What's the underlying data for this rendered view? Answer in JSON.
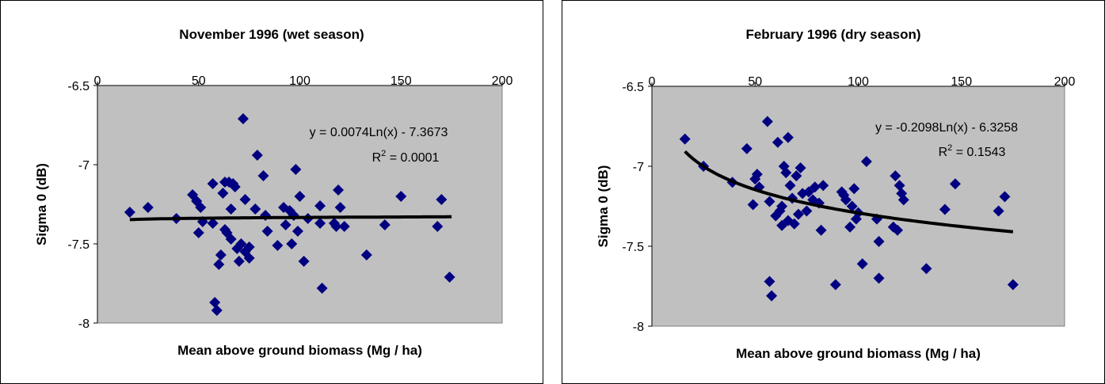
{
  "chart_data": [
    {
      "type": "scatter",
      "title": "November 1996 (wet season)",
      "xlabel": "Mean above ground biomass (Mg / ha)",
      "ylabel": "Sigma 0 (dB)",
      "xlim": [
        0,
        200
      ],
      "ylim": [
        -8,
        -6.5
      ],
      "xticks": [
        "0",
        "50",
        "100",
        "150",
        "200"
      ],
      "yticks": [
        "-6.5",
        "-7",
        "-7.5",
        "-8"
      ],
      "x_axis_position": "top",
      "grid": false,
      "plot_background": "#c0c0c0",
      "marker_color": "#000080",
      "trendline": {
        "type": "logarithmic",
        "a": 0.0074,
        "b": -7.3673,
        "x_range": [
          16,
          175
        ],
        "color": "#000000"
      },
      "equation_text": "y = 0.0074Ln(x) - 7.3673",
      "r2_prefix": "R",
      "r2_sup": "2",
      "r2_suffix": " = 0.0001",
      "series": [
        {
          "x": [
            16,
            25,
            39,
            47,
            49,
            50,
            51,
            52,
            57,
            57,
            58,
            59,
            60,
            61,
            62,
            63,
            63,
            64,
            65,
            66,
            66,
            67,
            68,
            69,
            70,
            71,
            72,
            73,
            73,
            75,
            75,
            78,
            79,
            82,
            83,
            84,
            89,
            92,
            93,
            95,
            96,
            97,
            98,
            99,
            100,
            102,
            104,
            110,
            110,
            111,
            117,
            118,
            119,
            120,
            122,
            133,
            142,
            150,
            168,
            170,
            174
          ],
          "y": [
            -7.3,
            -7.27,
            -7.34,
            -7.19,
            -7.23,
            -7.43,
            -7.27,
            -7.36,
            -7.12,
            -7.37,
            -7.87,
            -7.92,
            -7.63,
            -7.57,
            -7.18,
            -7.11,
            -7.41,
            -7.43,
            -7.11,
            -7.28,
            -7.47,
            -7.12,
            -7.14,
            -7.53,
            -7.61,
            -7.5,
            -6.71,
            -7.22,
            -7.55,
            -7.52,
            -7.59,
            -7.28,
            -6.94,
            -7.07,
            -7.32,
            -7.42,
            -7.51,
            -7.27,
            -7.38,
            -7.29,
            -7.5,
            -7.32,
            -7.03,
            -7.42,
            -7.2,
            -7.61,
            -7.34,
            -7.26,
            -7.37,
            -7.78,
            -7.37,
            -7.39,
            -7.16,
            -7.27,
            -7.39,
            -7.57,
            -7.38,
            -7.2,
            -7.39,
            -7.22,
            -7.71
          ]
        }
      ]
    },
    {
      "type": "scatter",
      "title": "February 1996 (dry season)",
      "xlabel": "Mean above ground biomass (Mg / ha)",
      "ylabel": "Sigma 0 (dB)",
      "xlim": [
        0,
        200
      ],
      "ylim": [
        -8,
        -6.5
      ],
      "xticks": [
        "0",
        "50",
        "100",
        "150",
        "200"
      ],
      "yticks": [
        "-6.5",
        "-7",
        "-7.5",
        "-8"
      ],
      "x_axis_position": "top",
      "grid": false,
      "plot_background": "#c0c0c0",
      "marker_color": "#000080",
      "trendline": {
        "type": "logarithmic",
        "a": -0.2098,
        "b": -6.3258,
        "x_range": [
          16,
          175
        ],
        "color": "#000000"
      },
      "equation_text": "y = -0.2098Ln(x) - 6.3258",
      "r2_prefix": "R",
      "r2_sup": "2",
      "r2_suffix": " = 0.1543",
      "series": [
        {
          "x": [
            16,
            25,
            39,
            46,
            49,
            50,
            51,
            52,
            56,
            57,
            57,
            58,
            60,
            61,
            62,
            63,
            63,
            64,
            65,
            66,
            66,
            67,
            68,
            69,
            70,
            71,
            72,
            73,
            75,
            76,
            78,
            79,
            81,
            82,
            83,
            89,
            92,
            93,
            94,
            96,
            97,
            98,
            99,
            100,
            102,
            104,
            109,
            110,
            110,
            117,
            118,
            119,
            120,
            121,
            122,
            133,
            142,
            147,
            168,
            171,
            175
          ],
          "y": [
            -6.83,
            -7.0,
            -7.1,
            -6.89,
            -7.24,
            -7.08,
            -7.05,
            -7.13,
            -6.72,
            -7.22,
            -7.72,
            -7.81,
            -7.31,
            -6.85,
            -7.28,
            -7.37,
            -7.25,
            -7.0,
            -7.04,
            -6.82,
            -7.34,
            -7.12,
            -7.2,
            -7.36,
            -7.06,
            -7.3,
            -7.01,
            -7.17,
            -7.28,
            -7.16,
            -7.21,
            -7.13,
            -7.23,
            -7.4,
            -7.12,
            -7.74,
            -7.16,
            -7.18,
            -7.21,
            -7.38,
            -7.25,
            -7.14,
            -7.33,
            -7.29,
            -7.61,
            -6.97,
            -7.33,
            -7.47,
            -7.7,
            -7.38,
            -7.06,
            -7.4,
            -7.12,
            -7.17,
            -7.21,
            -7.64,
            -7.27,
            -7.11,
            -7.28,
            -7.19,
            -7.74
          ]
        }
      ]
    }
  ]
}
